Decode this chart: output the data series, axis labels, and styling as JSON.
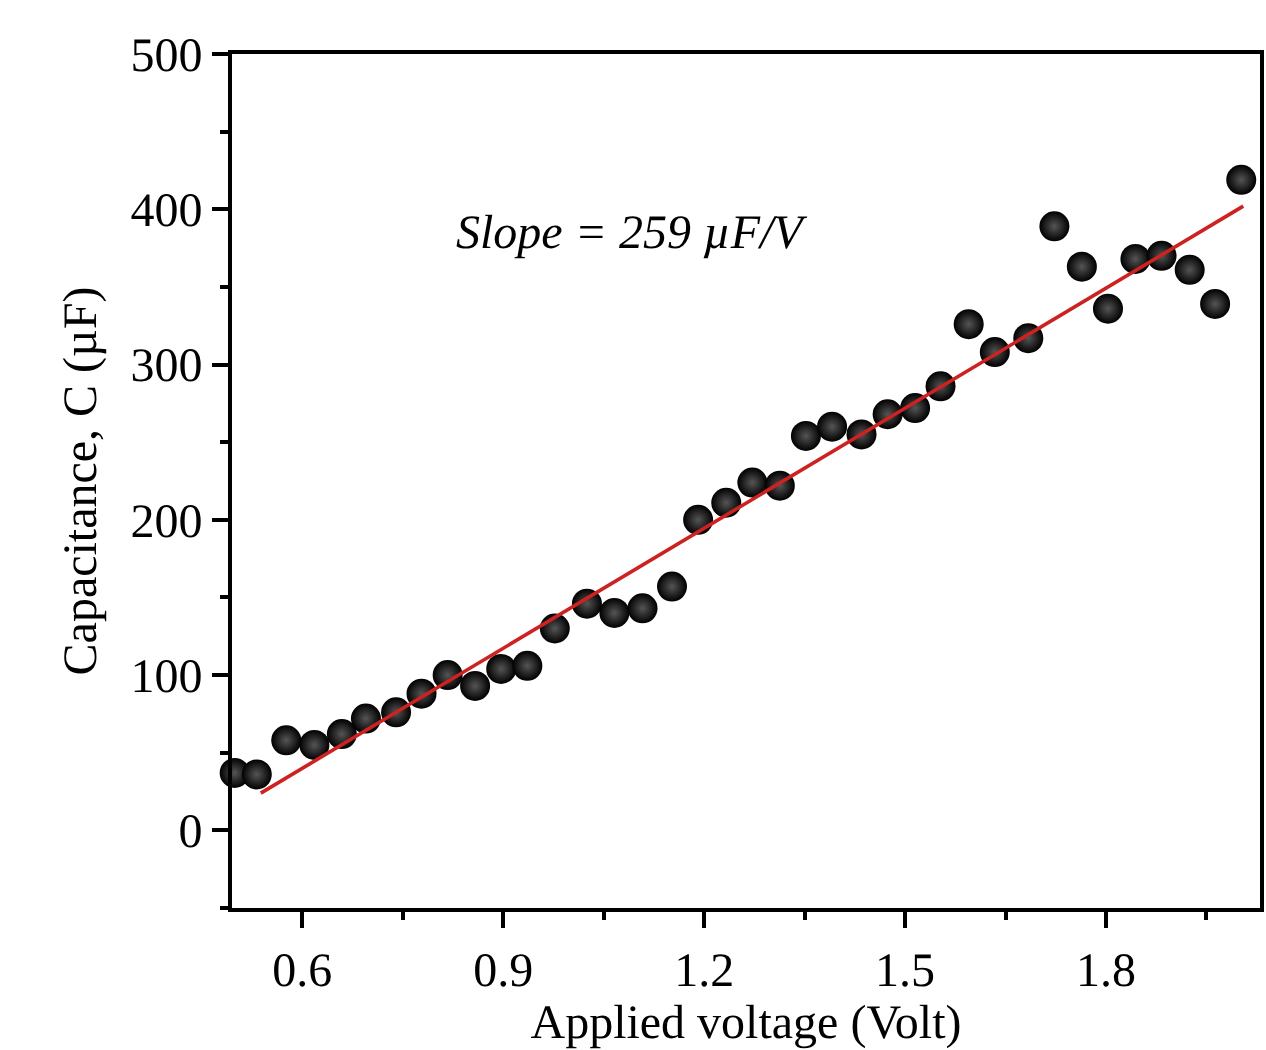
{
  "chart_data": {
    "type": "scatter",
    "xlabel": "Applied voltage (Volt)",
    "ylabel": "Capacitance, C (µF)",
    "annotations": [
      "Slope = 259 µF/V"
    ],
    "xlim": [
      0.495,
      2.03
    ],
    "xticks": [
      0.6,
      0.9,
      1.2,
      1.5,
      1.8
    ],
    "ylim": [
      -50,
      500
    ],
    "yticks": [
      0,
      100,
      200,
      300,
      400,
      500
    ],
    "grid": false,
    "series": [
      {
        "marker": "circle",
        "color": "#000000",
        "x": [
          0.499,
          0.532,
          0.576,
          0.618,
          0.659,
          0.695,
          0.74,
          0.778,
          0.817,
          0.858,
          0.897,
          0.936,
          0.977,
          1.025,
          1.066,
          1.108,
          1.152,
          1.191,
          1.233,
          1.272,
          1.313,
          1.352,
          1.391,
          1.435,
          1.474,
          1.515,
          1.553,
          1.595,
          1.634,
          1.684,
          1.723,
          1.764,
          1.803,
          1.844,
          1.883,
          1.925,
          1.963,
          2.002
        ],
        "values": [
          37,
          36,
          58,
          55,
          62,
          72,
          76,
          88,
          100,
          93,
          104,
          106,
          130,
          146,
          140,
          143,
          157,
          200,
          211,
          224,
          222,
          254,
          260,
          255,
          268,
          272,
          286,
          326,
          308,
          317,
          389,
          363,
          336,
          368,
          370,
          361,
          339,
          419
        ]
      },
      {
        "type": "line",
        "color": "#cc2222",
        "line_style": "solid",
        "x": [
          0.538,
          2.005
        ],
        "values": [
          24,
          402
        ]
      }
    ]
  }
}
